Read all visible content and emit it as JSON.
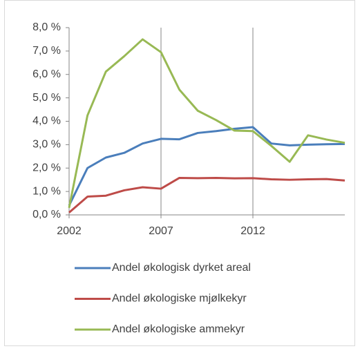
{
  "chart_data": {
    "type": "line",
    "x": [
      2002,
      2003,
      2004,
      2005,
      2006,
      2007,
      2008,
      2009,
      2010,
      2011,
      2012,
      2013,
      2014,
      2015,
      2016,
      2017
    ],
    "xlim": [
      2002,
      2017
    ],
    "xticks": [
      2002,
      2007,
      2012
    ],
    "ylim": [
      0,
      8
    ],
    "yticks": [
      {
        "value": 0,
        "label": "0,0 %"
      },
      {
        "value": 1,
        "label": "1,0 %"
      },
      {
        "value": 2,
        "label": "2,0 %"
      },
      {
        "value": 3,
        "label": "3,0 %"
      },
      {
        "value": 4,
        "label": "4,0 %"
      },
      {
        "value": 5,
        "label": "5,0 %"
      },
      {
        "value": 6,
        "label": "6,0 %"
      },
      {
        "value": 7,
        "label": "7,0 %"
      },
      {
        "value": 8,
        "label": "8,0 %"
      }
    ],
    "grid": false,
    "legend": "bottom",
    "series": [
      {
        "name": "Andel økologisk dyrket areal",
        "color": "#4a7ebb",
        "values": [
          0.4,
          2.0,
          2.45,
          2.65,
          3.05,
          3.25,
          3.23,
          3.5,
          3.58,
          3.68,
          3.75,
          3.05,
          2.97,
          3.0,
          3.02,
          3.03
        ]
      },
      {
        "name": "Andel økologiske mjølkekyr",
        "color": "#be4b48",
        "values": [
          0.1,
          0.78,
          0.82,
          1.05,
          1.18,
          1.12,
          1.58,
          1.57,
          1.58,
          1.56,
          1.57,
          1.52,
          1.5,
          1.52,
          1.53,
          1.47
        ]
      },
      {
        "name": "Andel økologiske ammekyr",
        "color": "#98b954",
        "values": [
          0.3,
          4.25,
          6.12,
          6.78,
          7.5,
          6.95,
          5.35,
          4.45,
          4.05,
          3.6,
          3.58,
          2.95,
          2.27,
          3.4,
          3.22,
          3.08
        ]
      }
    ]
  }
}
